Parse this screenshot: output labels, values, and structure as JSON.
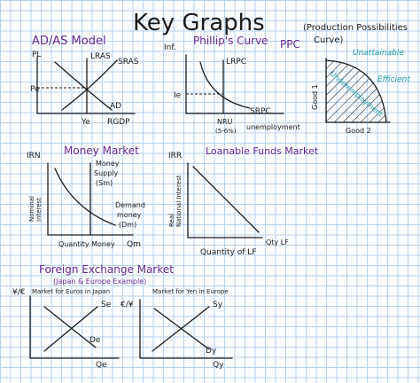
{
  "title": "Key Graphs",
  "adas": {
    "title": "AD/AS Model",
    "y_axis": "PL",
    "lras": "LRAS",
    "sras": "SRAS",
    "ad": "AD",
    "pe": "Pe",
    "ye": "Ye",
    "x_axis": "RGDP"
  },
  "phillips": {
    "title": "Phillip's Curve",
    "y_axis": "Inf.",
    "lrpc": "LRPC",
    "ie": "Ie",
    "srpc": "SRPC",
    "nru": "NRU",
    "nru_sub": "(5-6%)",
    "x_axis": "unemployment"
  },
  "ppc": {
    "title": "PPC",
    "subtitle_line1": "(Production Possibilities",
    "subtitle_line2": "Curve)",
    "unattainable": "Unattainable",
    "efficient": "Efficient",
    "underemployment": "Underemployment",
    "y_axis": "Good 1",
    "x_axis": "Good 2"
  },
  "money_market": {
    "title": "Money Market",
    "y_axis_line1": "Nominal",
    "y_axis_line2": "Interest",
    "y_axis_short": "IRN",
    "supply_line1": "Money",
    "supply_line2": "Supply",
    "supply_line3": "(Sm)",
    "demand_line1": "Demand",
    "demand_line2": "money",
    "demand_line3": "(Dm)",
    "x_axis": "Quantity Money",
    "x_axis_short": "Qm"
  },
  "loanable_funds": {
    "title": "Loanable Funds Market",
    "y_axis_short": "IRR",
    "y_axis_line1": "Real",
    "y_axis_line2": "National Interest",
    "x_axis": "Quantity of LF",
    "x_axis_short": "Qty LF"
  },
  "forex": {
    "title": "Foreign Exchange Market",
    "subtitle": "(Japan & Europe Example)",
    "left": {
      "y_axis": "¥/€",
      "caption": "Market for Euros in Japan",
      "supply": "Se",
      "demand": "De",
      "x_axis": "Qe"
    },
    "right": {
      "y_axis": "€/¥",
      "caption": "Market for Yen in Europe",
      "supply": "Sy",
      "demand": "Dy",
      "x_axis": "Qy"
    }
  },
  "colors": {
    "ink": "#1c1c1c",
    "purple": "#6a2a8e",
    "teal": "#1e9aa6",
    "grid": "#b9d3ee"
  }
}
